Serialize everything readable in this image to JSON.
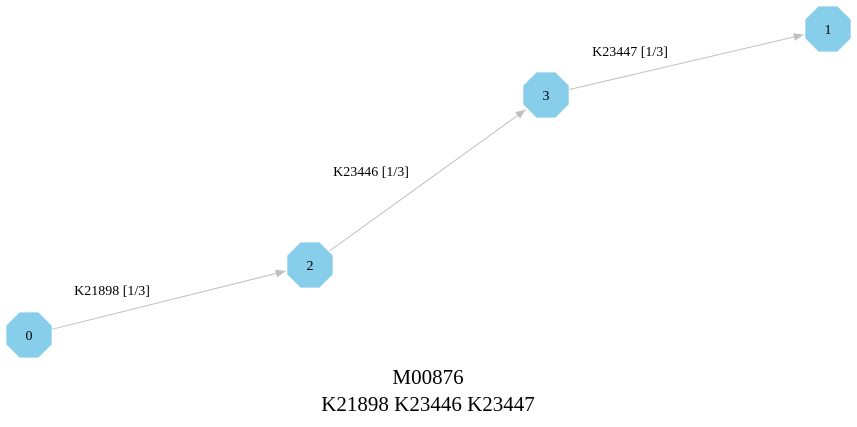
{
  "colors": {
    "node_fill": "#87ceeb",
    "edge_stroke": "#c0c0c0",
    "text": "#000000",
    "background": "#ffffff"
  },
  "graph": {
    "node_shape": "octagon",
    "nodes": [
      {
        "id": "0",
        "label": "0"
      },
      {
        "id": "2",
        "label": "2"
      },
      {
        "id": "3",
        "label": "3"
      },
      {
        "id": "1",
        "label": "1"
      }
    ],
    "edges": [
      {
        "from": "0",
        "to": "2",
        "label": "K21898 [1/3]"
      },
      {
        "from": "2",
        "to": "3",
        "label": "K23446 [1/3]"
      },
      {
        "from": "3",
        "to": "1",
        "label": "K23447 [1/3]"
      }
    ]
  },
  "caption": {
    "line1": "M00876",
    "line2": "K21898 K23446 K23447"
  }
}
